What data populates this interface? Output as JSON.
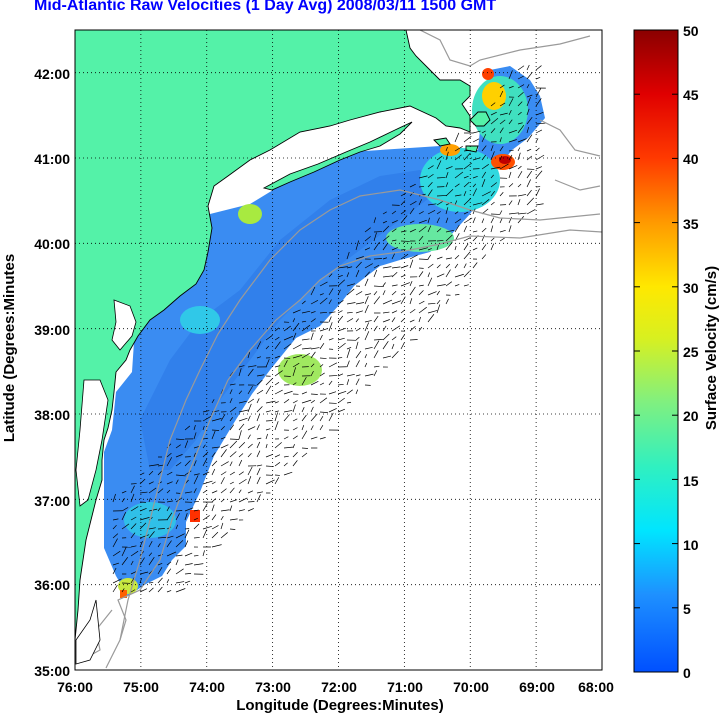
{
  "title": "Mid-Atlantic Raw Velocities (1 Day Avg) 2008/03/11 1500 GMT",
  "map": {
    "xlabel": "Longitude (Degrees:Minutes)",
    "ylabel": "Latitude (Degrees:Minutes",
    "x_ticks": [
      "76:00",
      "75:00",
      "74:00",
      "73:00",
      "72:00",
      "71:00",
      "70:00",
      "69:00",
      "68:00"
    ],
    "y_ticks": [
      "35:00",
      "36:00",
      "37:00",
      "38:00",
      "39:00",
      "40:00",
      "41:00",
      "42:00"
    ],
    "lon_range": [
      -76,
      -68
    ],
    "lat_range": [
      35,
      42.5
    ],
    "colors": {
      "land": "#54f2a8",
      "coast": "#000000",
      "isobath": "#9a9a9a",
      "ocean_base": "#3a8cf2"
    }
  },
  "colorbar": {
    "label": "Surface Velocity (cm/s)",
    "ticks": [
      "0",
      "5",
      "10",
      "15",
      "20",
      "25",
      "30",
      "35",
      "40",
      "45",
      "50"
    ],
    "range": [
      0,
      50
    ]
  }
}
